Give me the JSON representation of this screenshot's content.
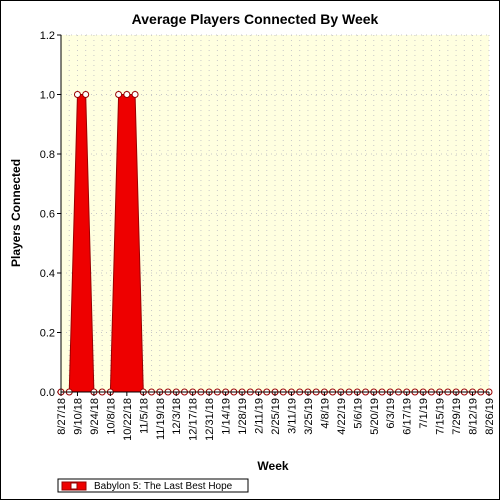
{
  "chart_data": {
    "type": "area",
    "title": "Average Players Connected By Week",
    "xlabel": "Week",
    "ylabel": "Players Connected",
    "ylim": [
      0,
      1.2
    ],
    "yticks": [
      "0.0",
      "0.2",
      "0.4",
      "0.6",
      "0.8",
      "1.0",
      "1.2"
    ],
    "x_tick_labels": [
      "8/27/18",
      "9/10/18",
      "9/24/18",
      "10/8/18",
      "10/22/18",
      "11/5/18",
      "11/19/18",
      "12/3/18",
      "12/17/18",
      "12/31/18",
      "1/14/19",
      "1/28/19",
      "2/11/19",
      "2/25/19",
      "3/11/19",
      "3/25/19",
      "4/8/19",
      "4/22/19",
      "5/6/19",
      "5/20/19",
      "6/3/19",
      "6/17/19",
      "7/1/19",
      "7/15/19",
      "7/29/19",
      "8/12/19",
      "8/26/19"
    ],
    "grid": true,
    "legend_position": "bottom-left",
    "series": [
      {
        "name": "Babylon 5: The Last Best Hope",
        "color": "#ee0000",
        "values": [
          0,
          0,
          1,
          1,
          0,
          0,
          0,
          1,
          1,
          1,
          0,
          0,
          0,
          0,
          0,
          0,
          0,
          0,
          0,
          0,
          0,
          0,
          0,
          0,
          0,
          0,
          0,
          0,
          0,
          0,
          0,
          0,
          0,
          0,
          0,
          0,
          0,
          0,
          0,
          0,
          0,
          0,
          0,
          0,
          0,
          0,
          0,
          0,
          0,
          0,
          0,
          0,
          0
        ]
      }
    ]
  },
  "colors": {
    "plot_background": "#ffffe0",
    "grid": "#c8c8c8",
    "series_fill": "#ee0000",
    "series_stroke": "#990000",
    "marker_fill": "#ffffff"
  }
}
